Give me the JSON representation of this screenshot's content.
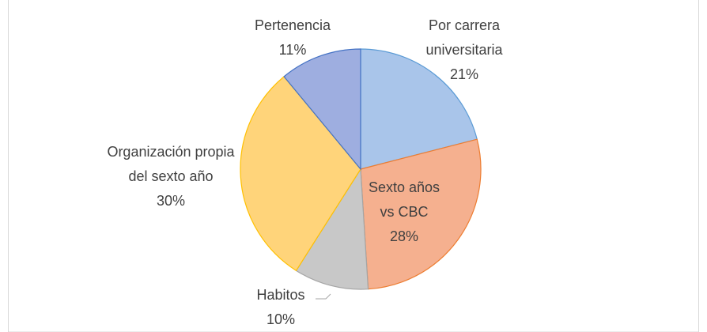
{
  "chart_data": {
    "type": "pie",
    "categories": [
      "Por carrera universitaria",
      "Sexto años vs CBC",
      "Habitos",
      "Organización propia del sexto año",
      "Pertenencia"
    ],
    "values": [
      21,
      28,
      10,
      30,
      11
    ],
    "value_labels": [
      "21%",
      "28%",
      "10%",
      "30%",
      "11%"
    ],
    "colors": [
      "#a9c5ea",
      "#f5b08f",
      "#c8c8c8",
      "#ffd47a",
      "#9eaee0"
    ],
    "edge_colors": [
      "#5b9bd5",
      "#ed7d31",
      "#a5a5a5",
      "#ffc000",
      "#4472c4"
    ]
  }
}
